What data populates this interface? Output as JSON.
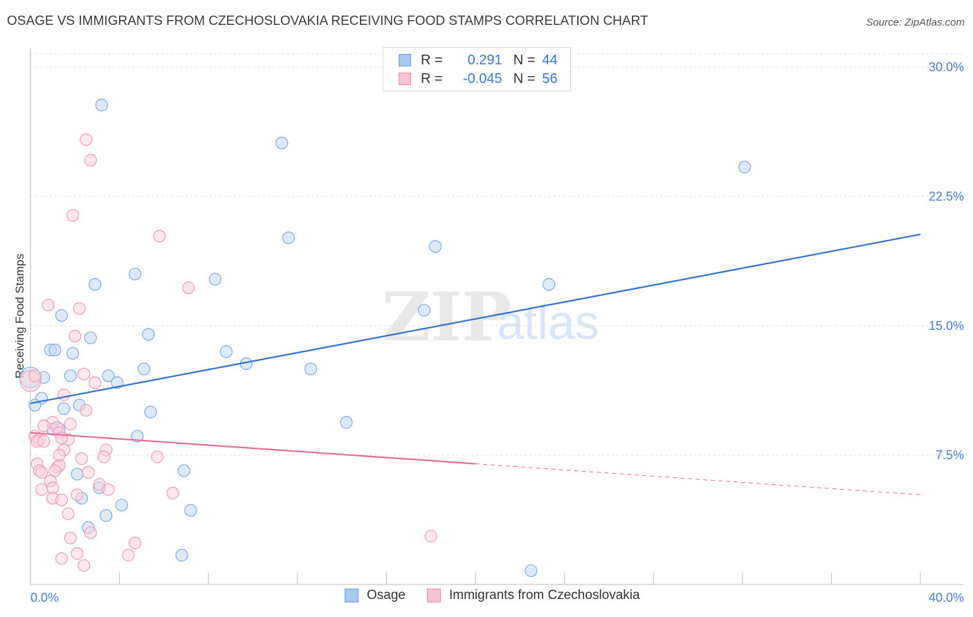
{
  "title": "OSAGE VS IMMIGRANTS FROM CZECHOSLOVAKIA RECEIVING FOOD STAMPS CORRELATION CHART",
  "source": "Source: ZipAtlas.com",
  "watermark": {
    "zip": "ZIP",
    "atlas": "atlas"
  },
  "legend": {
    "rows": [
      {
        "r_label": "R =",
        "r_value": "0.291",
        "n_label": "N =",
        "n_value": "44",
        "color": "#a9c8f0",
        "border": "#6a9fe0"
      },
      {
        "r_label": "R =",
        "r_value": "-0.045",
        "n_label": "N =",
        "n_value": "56",
        "color": "#f7c3d2",
        "border": "#e98aa8"
      }
    ]
  },
  "bottom_legend": [
    {
      "label": "Osage",
      "color": "#a9c8f0",
      "border": "#6a9fe0"
    },
    {
      "label": "Immigrants from Czechoslovakia",
      "color": "#f7c3d2",
      "border": "#e98aa8"
    }
  ],
  "chart_data": {
    "type": "scatter",
    "title": "OSAGE VS IMMIGRANTS FROM CZECHOSLOVAKIA RECEIVING FOOD STAMPS CORRELATION CHART",
    "xlabel": "",
    "ylabel": "Receiving Food Stamps",
    "xlim": [
      0,
      40
    ],
    "ylim": [
      0,
      30
    ],
    "x_tick_labels": [
      "0.0%",
      "40.0%"
    ],
    "y_ticks": [
      7.5,
      15.0,
      22.5,
      30.0
    ],
    "y_tick_labels": [
      "7.5%",
      "15.0%",
      "22.5%",
      "30.0%"
    ],
    "series": [
      {
        "name": "Osage",
        "color": "#7aaae6",
        "fill": "#c4d9f4",
        "trend": {
          "x": [
            0,
            40
          ],
          "y": [
            10.5,
            20.3
          ],
          "color": "#2f72cf"
        },
        "points": [
          [
            3.2,
            27.8
          ],
          [
            11.3,
            25.6
          ],
          [
            32.1,
            24.2
          ],
          [
            11.6,
            20.1
          ],
          [
            18.2,
            19.6
          ],
          [
            4.7,
            18.0
          ],
          [
            8.3,
            17.7
          ],
          [
            2.9,
            17.4
          ],
          [
            23.3,
            17.4
          ],
          [
            17.7,
            15.9
          ],
          [
            1.4,
            15.6
          ],
          [
            5.3,
            14.5
          ],
          [
            2.7,
            14.3
          ],
          [
            0.9,
            13.6
          ],
          [
            1.1,
            13.6
          ],
          [
            1.9,
            13.4
          ],
          [
            8.8,
            13.5
          ],
          [
            9.7,
            12.8
          ],
          [
            5.1,
            12.5
          ],
          [
            12.6,
            12.5
          ],
          [
            3.5,
            12.1
          ],
          [
            0.6,
            12.0
          ],
          [
            1.8,
            12.1
          ],
          [
            3.9,
            11.7
          ],
          [
            0.0,
            12.0
          ],
          [
            0.5,
            10.8
          ],
          [
            0.2,
            10.4
          ],
          [
            2.2,
            10.4
          ],
          [
            1.5,
            10.2
          ],
          [
            5.4,
            10.0
          ],
          [
            1.0,
            9.0
          ],
          [
            1.3,
            9.0
          ],
          [
            14.2,
            9.4
          ],
          [
            4.8,
            8.6
          ],
          [
            6.9,
            6.6
          ],
          [
            2.1,
            6.4
          ],
          [
            3.1,
            5.6
          ],
          [
            2.3,
            5.0
          ],
          [
            4.1,
            4.6
          ],
          [
            7.2,
            4.3
          ],
          [
            3.4,
            4.0
          ],
          [
            2.6,
            3.3
          ],
          [
            6.8,
            1.7
          ],
          [
            22.5,
            0.8
          ]
        ]
      },
      {
        "name": "Immigrants from Czechoslovakia",
        "color": "#ef9ab6",
        "fill": "#f9d3df",
        "trend": {
          "x": [
            0,
            20
          ],
          "y": [
            8.8,
            7.0
          ],
          "dashed_to": [
            40,
            5.2
          ],
          "color": "#e46d95"
        },
        "points": [
          [
            2.5,
            25.8
          ],
          [
            2.7,
            24.6
          ],
          [
            1.9,
            21.4
          ],
          [
            5.8,
            20.2
          ],
          [
            7.1,
            17.2
          ],
          [
            0.8,
            16.2
          ],
          [
            2.2,
            16.0
          ],
          [
            2.0,
            14.4
          ],
          [
            2.4,
            12.2
          ],
          [
            2.9,
            11.7
          ],
          [
            1.5,
            11.0
          ],
          [
            0.0,
            11.8
          ],
          [
            2.5,
            10.1
          ],
          [
            1.0,
            9.4
          ],
          [
            0.6,
            9.2
          ],
          [
            1.2,
            9.1
          ],
          [
            1.8,
            9.3
          ],
          [
            1.3,
            8.8
          ],
          [
            0.2,
            8.6
          ],
          [
            0.4,
            8.4
          ],
          [
            1.7,
            8.4
          ],
          [
            0.3,
            8.3
          ],
          [
            1.4,
            8.5
          ],
          [
            1.5,
            7.8
          ],
          [
            3.4,
            7.8
          ],
          [
            1.3,
            7.5
          ],
          [
            2.3,
            7.3
          ],
          [
            3.3,
            7.4
          ],
          [
            5.7,
            7.4
          ],
          [
            0.3,
            7.0
          ],
          [
            1.2,
            6.8
          ],
          [
            1.3,
            6.9
          ],
          [
            0.4,
            6.6
          ],
          [
            0.5,
            6.5
          ],
          [
            1.1,
            6.6
          ],
          [
            2.6,
            6.5
          ],
          [
            0.9,
            6.0
          ],
          [
            3.1,
            5.8
          ],
          [
            1.0,
            5.6
          ],
          [
            0.5,
            5.5
          ],
          [
            3.5,
            5.5
          ],
          [
            6.4,
            5.3
          ],
          [
            2.1,
            5.2
          ],
          [
            1.0,
            5.0
          ],
          [
            1.4,
            4.9
          ],
          [
            1.7,
            4.1
          ],
          [
            2.7,
            3.0
          ],
          [
            1.8,
            2.7
          ],
          [
            4.7,
            2.4
          ],
          [
            18.0,
            2.8
          ],
          [
            2.1,
            1.8
          ],
          [
            4.4,
            1.7
          ],
          [
            1.4,
            1.5
          ],
          [
            2.4,
            1.1
          ],
          [
            0.2,
            12.1
          ],
          [
            0.6,
            8.3
          ]
        ]
      }
    ]
  }
}
